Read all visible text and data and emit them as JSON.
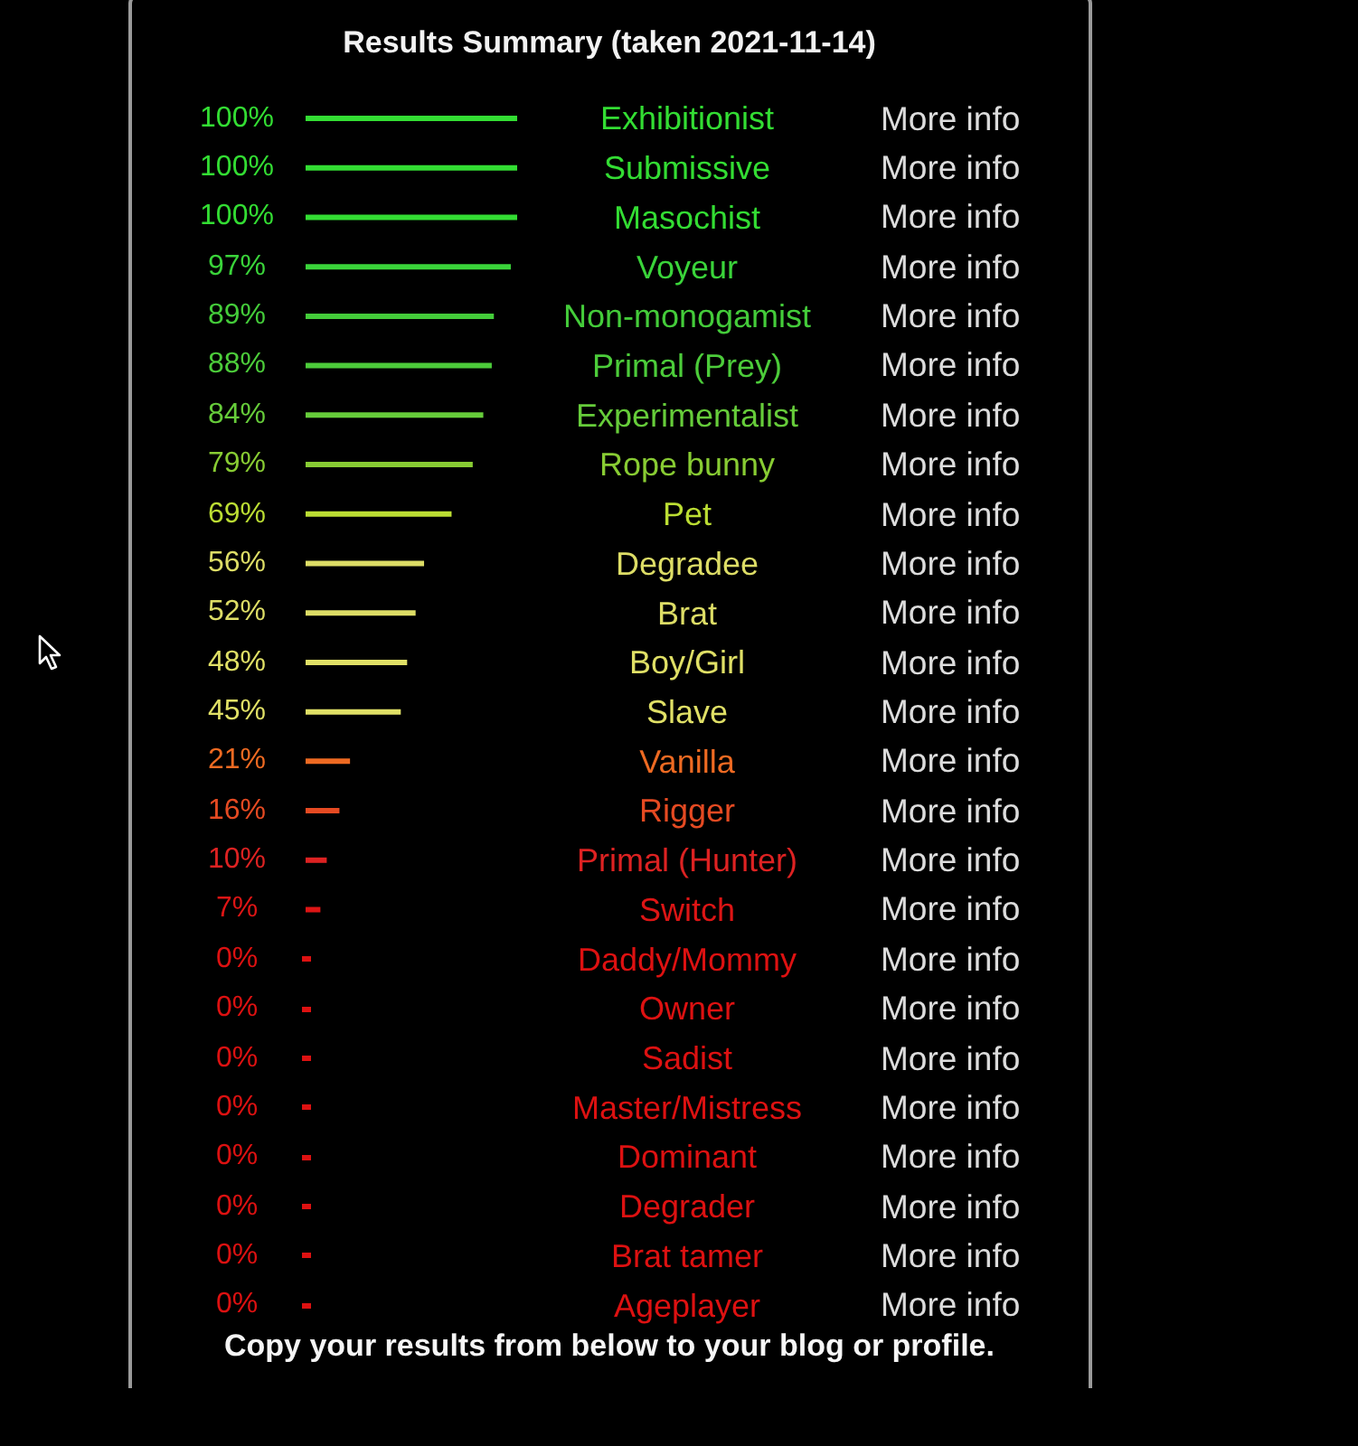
{
  "chart_data": {
    "type": "bar",
    "orientation": "horizontal",
    "title": "Results Summary (taken 2021-11-14)",
    "categories": [
      "Exhibitionist",
      "Submissive",
      "Masochist",
      "Voyeur",
      "Non-monogamist",
      "Primal (Prey)",
      "Experimentalist",
      "Rope bunny",
      "Pet",
      "Degradee",
      "Brat",
      "Boy/Girl",
      "Slave",
      "Vanilla",
      "Rigger",
      "Primal (Hunter)",
      "Switch",
      "Daddy/Mommy",
      "Owner",
      "Sadist",
      "Master/Mistress",
      "Dominant",
      "Degrader",
      "Brat tamer",
      "Ageplayer"
    ],
    "values": [
      100,
      100,
      100,
      97,
      89,
      88,
      84,
      79,
      69,
      56,
      52,
      48,
      45,
      21,
      16,
      10,
      7,
      0,
      0,
      0,
      0,
      0,
      0,
      0,
      0
    ],
    "value_labels": [
      "100%",
      "100%",
      "100%",
      "97%",
      "89%",
      "88%",
      "84%",
      "79%",
      "69%",
      "56%",
      "52%",
      "48%",
      "45%",
      "21%",
      "16%",
      "10%",
      "7%",
      "0%",
      "0%",
      "0%",
      "0%",
      "0%",
      "0%",
      "0%",
      "0%"
    ],
    "colors": [
      "#33dd33",
      "#33dd33",
      "#33dd33",
      "#3ad43a",
      "#44cc3a",
      "#4ccc3a",
      "#66cc3a",
      "#88cc33",
      "#bbdd33",
      "#dddd66",
      "#dddd66",
      "#e0e066",
      "#e0e066",
      "#ee6a22",
      "#e54a22",
      "#dd2222",
      "#dd1515",
      "#dd1111",
      "#dd1111",
      "#dd1111",
      "#dd1111",
      "#dd1111",
      "#dd1111",
      "#dd1111",
      "#dd1111"
    ],
    "xlim": [
      0,
      100
    ],
    "tick_labels": "y",
    "annotations": [
      "More info",
      "More info",
      "More info",
      "More info",
      "More info",
      "More info",
      "More info",
      "More info",
      "More info",
      "More info",
      "More info",
      "More info",
      "More info",
      "More info",
      "More info",
      "More info",
      "More info",
      "More info",
      "More info",
      "More info",
      "More info",
      "More info",
      "More info",
      "More info",
      "More info",
      "Copy your results from below to your blog or profile."
    ]
  }
}
